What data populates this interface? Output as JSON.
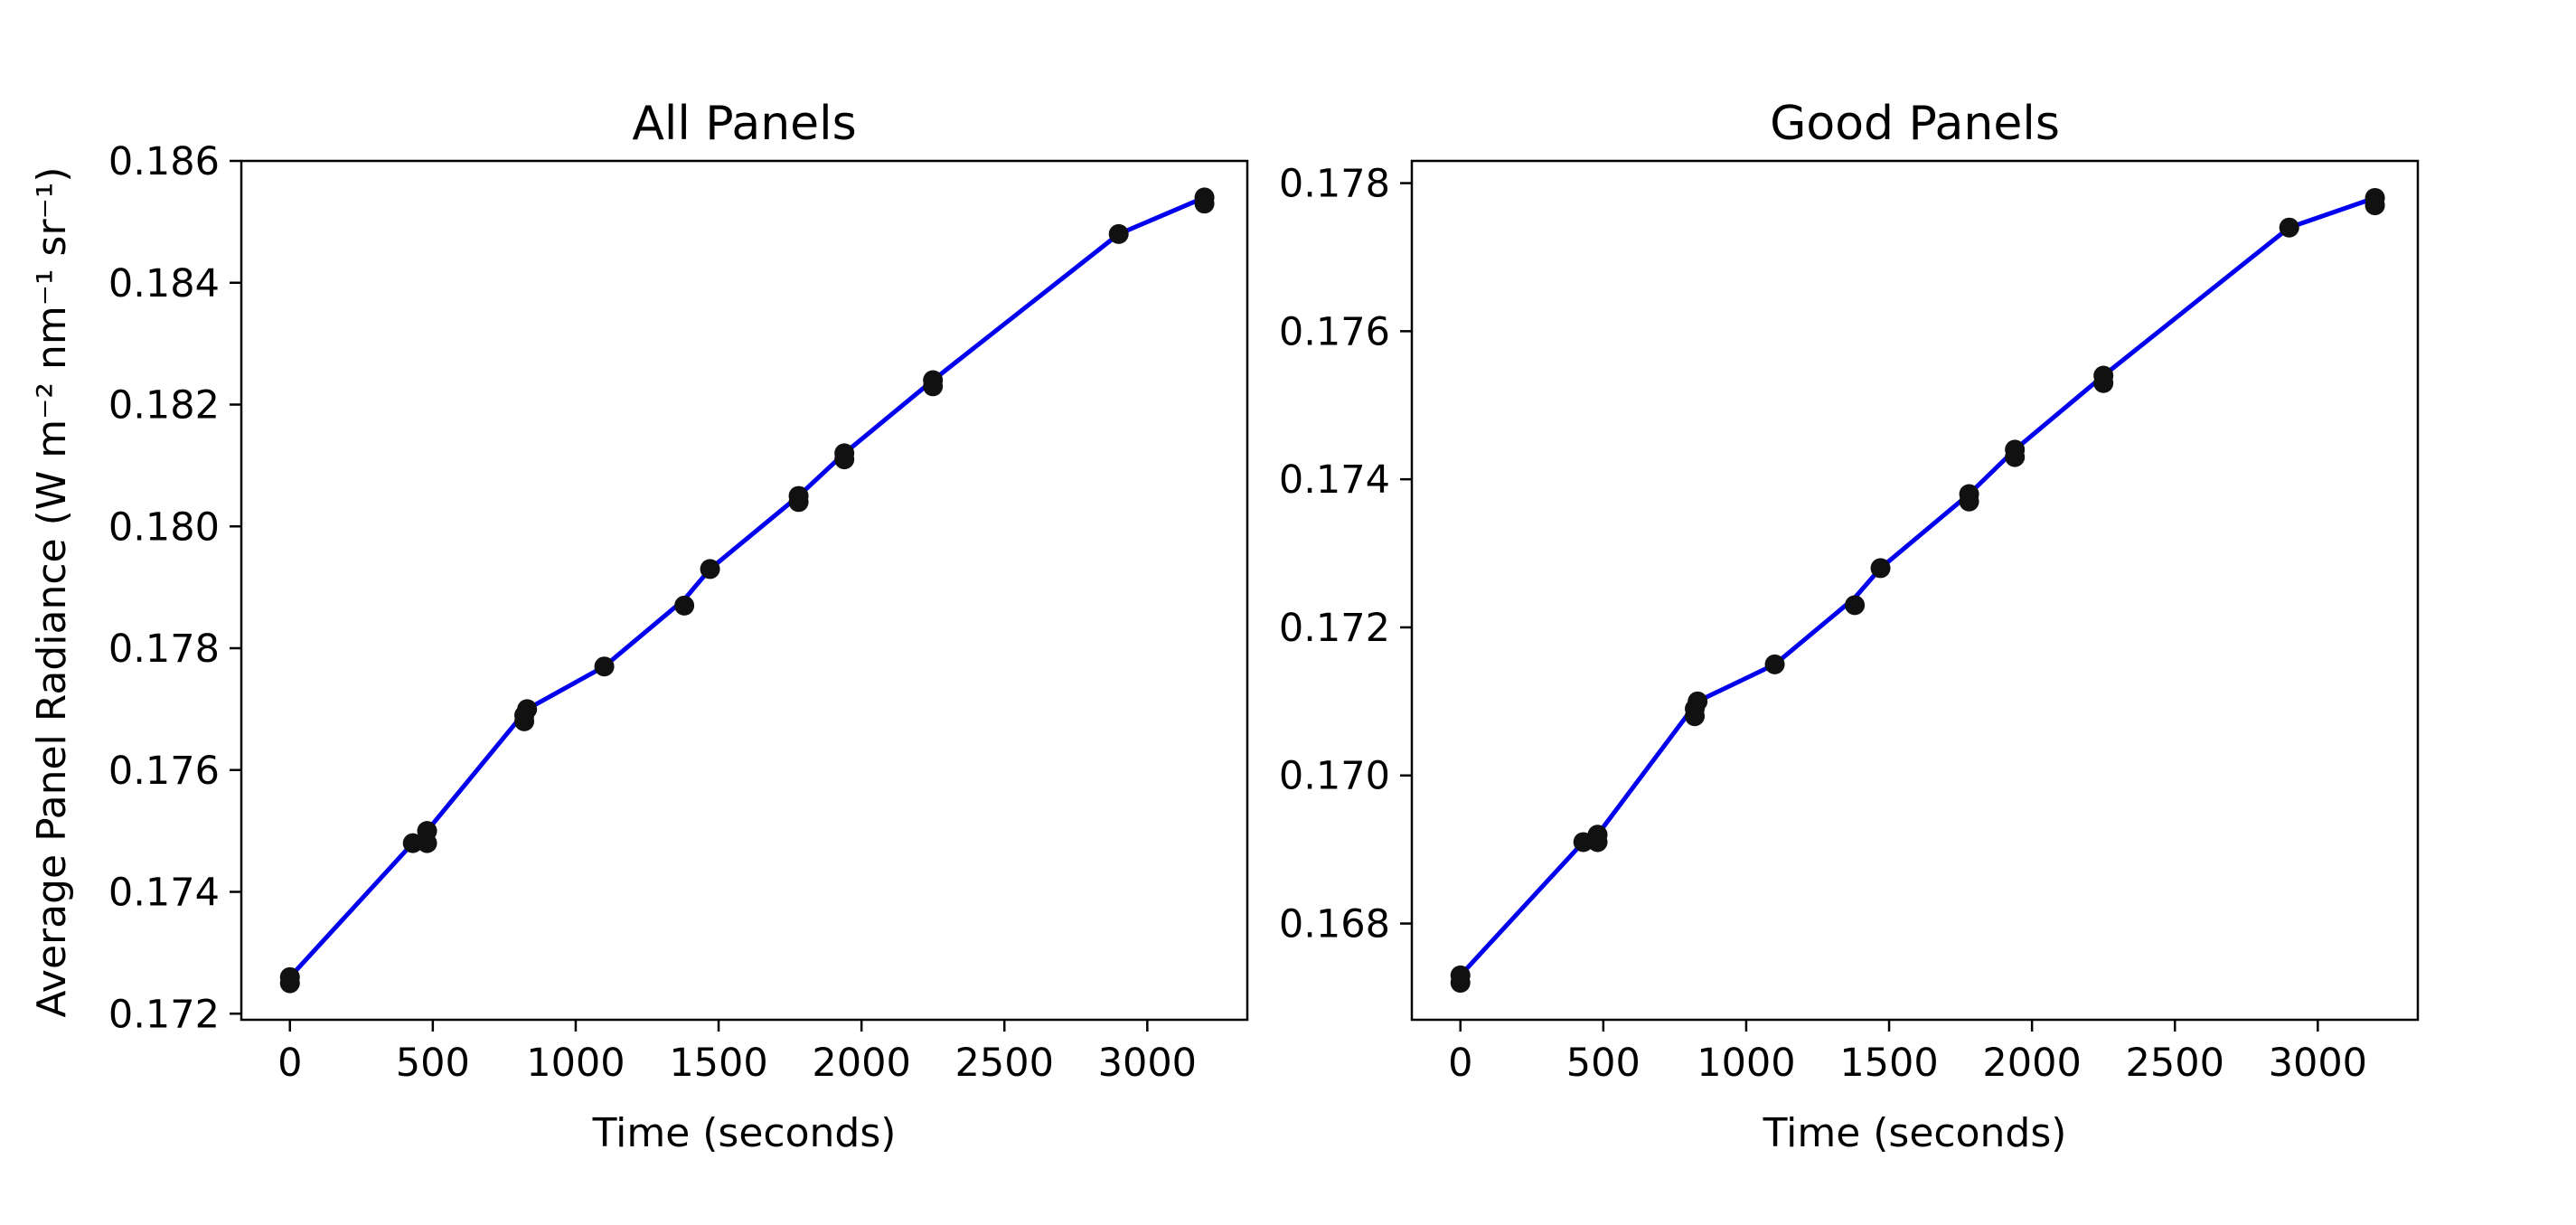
{
  "figure": {
    "ylabel": "Average Panel Radiance (W m⁻² nm⁻¹ sr⁻¹)"
  },
  "colors": {
    "line": "#0000ee",
    "marker": "#111111",
    "axes": "#000000"
  },
  "chart_data": [
    {
      "type": "line",
      "title": "All Panels",
      "xlabel": "Time (seconds)",
      "ylabel": "Average Panel Radiance (W m⁻² nm⁻¹ sr⁻¹)",
      "xlim": [
        -170,
        3350
      ],
      "ylim": [
        0.1719,
        0.186
      ],
      "xticks": [
        0,
        500,
        1000,
        1500,
        2000,
        2500,
        3000
      ],
      "yticks": [
        0.172,
        0.174,
        0.176,
        0.178,
        0.18,
        0.182,
        0.184,
        0.186
      ],
      "ytick_labels": [
        "0.172",
        "0.174",
        "0.176",
        "0.178",
        "0.180",
        "0.182",
        "0.184",
        "0.186"
      ],
      "grid": false,
      "series": [
        {
          "style": "line",
          "x": [
            0,
            430,
            480,
            830,
            1100,
            1380,
            1470,
            1780,
            1940,
            2250,
            2900,
            3200
          ],
          "y": [
            0.1726,
            0.1748,
            0.175,
            0.177,
            0.1777,
            0.1788,
            0.1793,
            0.1805,
            0.1812,
            0.1824,
            0.1848,
            0.1854
          ]
        },
        {
          "style": "scatter",
          "x": [
            0,
            0,
            430,
            480,
            480,
            820,
            820,
            830,
            1100,
            1380,
            1470,
            1780,
            1780,
            1940,
            1940,
            2250,
            2250,
            2900,
            3200,
            3200
          ],
          "y": [
            0.1725,
            0.1726,
            0.1748,
            0.1748,
            0.175,
            0.1768,
            0.1769,
            0.177,
            0.1777,
            0.1787,
            0.1793,
            0.1804,
            0.1805,
            0.1811,
            0.1812,
            0.1823,
            0.1824,
            0.1848,
            0.1853,
            0.1854
          ]
        }
      ]
    },
    {
      "type": "line",
      "title": "Good Panels",
      "xlabel": "Time (seconds)",
      "ylabel": "",
      "xlim": [
        -170,
        3350
      ],
      "ylim": [
        0.1667,
        0.1783
      ],
      "xticks": [
        0,
        500,
        1000,
        1500,
        2000,
        2500,
        3000
      ],
      "yticks": [
        0.168,
        0.17,
        0.172,
        0.174,
        0.176,
        0.178
      ],
      "ytick_labels": [
        "0.168",
        "0.170",
        "0.172",
        "0.174",
        "0.176",
        "0.178"
      ],
      "grid": false,
      "series": [
        {
          "style": "line",
          "x": [
            0,
            430,
            480,
            830,
            1100,
            1380,
            1470,
            1780,
            1940,
            2250,
            2900,
            3200
          ],
          "y": [
            0.1673,
            0.1691,
            0.1692,
            0.171,
            0.1715,
            0.1724,
            0.1728,
            0.1738,
            0.1744,
            0.1754,
            0.1774,
            0.1778
          ]
        },
        {
          "style": "scatter",
          "x": [
            0,
            0,
            430,
            480,
            480,
            820,
            820,
            830,
            1100,
            1380,
            1470,
            1780,
            1780,
            1940,
            1940,
            2250,
            2250,
            2900,
            3200,
            3200
          ],
          "y": [
            0.1672,
            0.1673,
            0.1691,
            0.1691,
            0.1692,
            0.1708,
            0.1709,
            0.171,
            0.1715,
            0.1723,
            0.1728,
            0.1737,
            0.1738,
            0.1743,
            0.1744,
            0.1753,
            0.1754,
            0.1774,
            0.1777,
            0.1778
          ]
        }
      ]
    }
  ]
}
